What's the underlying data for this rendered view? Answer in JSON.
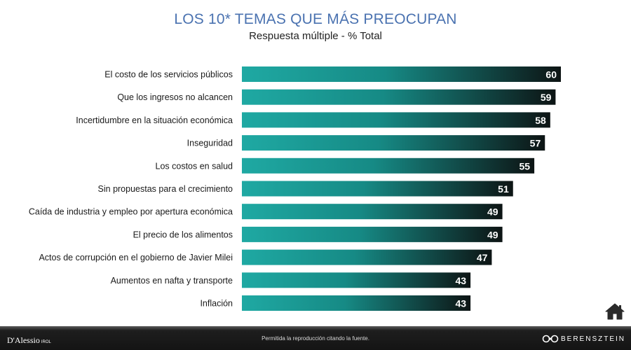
{
  "header": {
    "title": "LOS 10* TEMAS QUE MÁS PREOCUPAN",
    "subtitle": "Respuesta múltiple - % Total"
  },
  "chart_data": {
    "type": "bar",
    "orientation": "horizontal",
    "title": "LOS 10* TEMAS QUE MÁS PREOCUPAN",
    "subtitle": "Respuesta múltiple - % Total",
    "categories": [
      "El costo de los servicios públicos",
      "Que los ingresos no alcancen",
      "Incertidumbre en la situación económica",
      "Inseguridad",
      "Los costos en salud",
      "Sin propuestas para el crecimiento",
      "Caída de industria y empleo por apertura económica",
      "El precio de los alimentos",
      "Actos de corrupción en el gobierno de Javier Milei",
      "Aumentos en nafta y transporte",
      "Inflación"
    ],
    "values": [
      60,
      59,
      58,
      57,
      55,
      51,
      49,
      49,
      47,
      43,
      43
    ],
    "xlim": [
      0,
      60
    ],
    "grid": false,
    "colors": {
      "bar_start": "#1fa9a3",
      "bar_end": "#0d1414",
      "value_label": "#ffffff"
    }
  },
  "footer": {
    "left_logo": "D'Alessio",
    "left_logo_suffix": "IROL",
    "note": "Permitida la reproducción citando la fuente.",
    "right_logo": "BERENSZTEIN"
  },
  "icons": {
    "home": "home-icon"
  }
}
